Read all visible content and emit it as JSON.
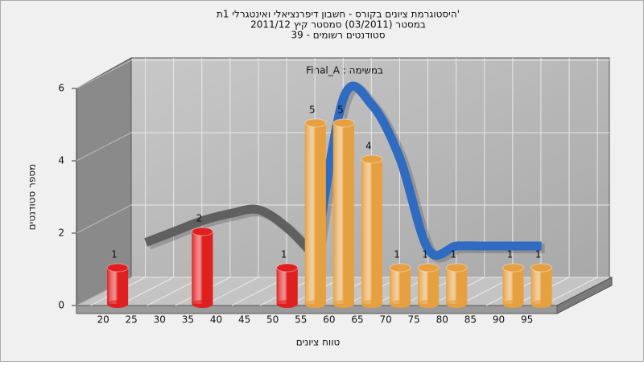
{
  "chart_data": {
    "type": "bar3d",
    "title": [
      "היסטוגרמת ציונים בקורס - חשבון דיפרנציאלי ואינטגרלי 1ת'",
      "במסטר  (03/2011)  סמסטר קיץ 2011/12",
      "סטודנטים רשומים - 39"
    ],
    "annotation": "Final_A : במשימה",
    "y_label": "מספר סטודנטים",
    "x_label": "טווח ציונים",
    "categories": [
      "20",
      "25",
      "30",
      "35",
      "40",
      "45",
      "50",
      "55",
      "60",
      "65",
      "70",
      "75",
      "80",
      "85",
      "90",
      "95"
    ],
    "values": [
      1,
      null,
      null,
      2,
      null,
      null,
      1,
      5,
      5,
      4,
      1,
      1,
      1,
      null,
      1,
      1
    ],
    "colors": [
      "#e02020",
      null,
      null,
      "#e02020",
      null,
      null,
      "#e02020",
      "#e6a040",
      "#e6a040",
      "#e6a040",
      "#e6a040",
      "#e6a040",
      "#e6a040",
      null,
      "#e6a040",
      "#e6a040"
    ],
    "curves": [
      {
        "color": "#606060",
        "values": [
          null,
          1.7,
          2.0,
          2.3,
          2.5,
          2.6,
          2.1,
          1.3,
          null,
          null,
          null,
          null,
          null,
          null,
          null,
          null
        ]
      },
      {
        "color": "#2f6bc0",
        "values": [
          null,
          null,
          null,
          null,
          null,
          null,
          null,
          1.3,
          5.7,
          5.5,
          4.0,
          1.5,
          1.6,
          1.6,
          1.6,
          1.6
        ]
      }
    ],
    "ylim": [
      0,
      6
    ],
    "yticks": [
      0,
      2,
      4,
      6
    ],
    "grid": true
  }
}
